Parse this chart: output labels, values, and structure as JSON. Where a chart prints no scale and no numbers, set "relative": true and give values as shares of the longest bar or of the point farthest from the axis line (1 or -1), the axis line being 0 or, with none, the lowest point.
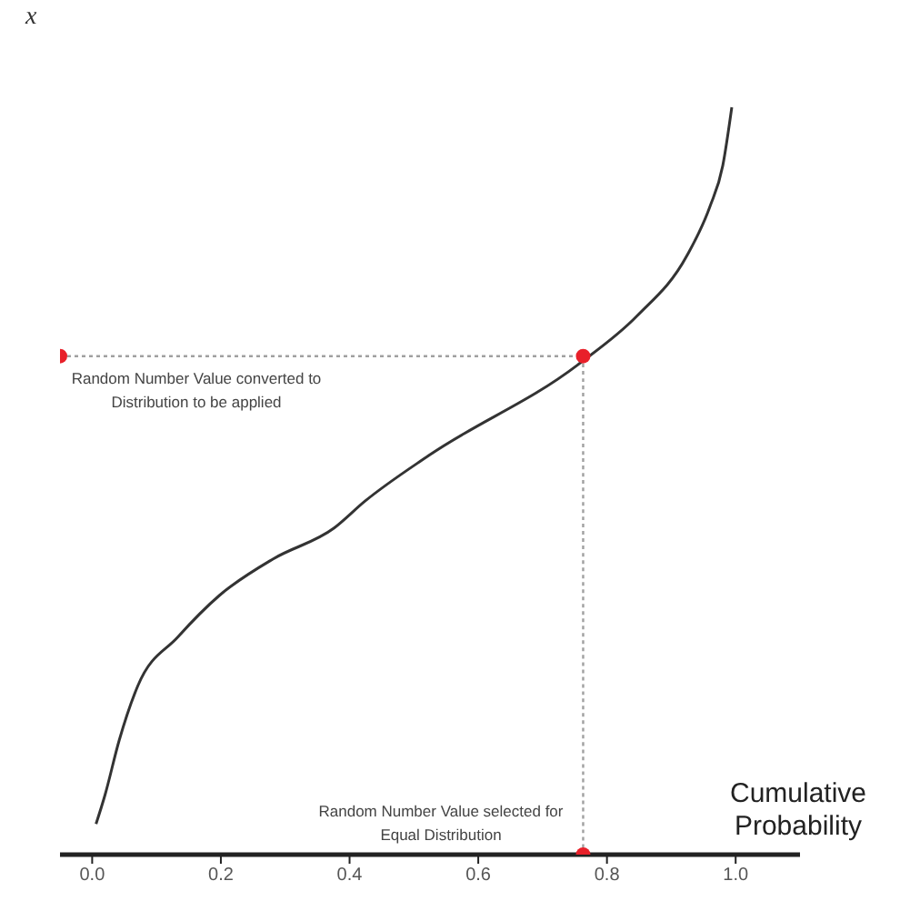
{
  "chart_data": {
    "type": "line",
    "relative": true,
    "xlabel": "Cumulative Probability",
    "ylabel": "x",
    "xlim": [
      -0.05,
      1.1
    ],
    "xticks": [
      {
        "value": 0,
        "label": "0.0"
      },
      {
        "value": 0.2,
        "label": "0.2"
      },
      {
        "value": 0.4,
        "label": "0.4"
      },
      {
        "value": 0.6,
        "label": "0.6"
      },
      {
        "value": 0.8,
        "label": "0.8"
      },
      {
        "value": 1,
        "label": "1.0"
      }
    ],
    "annotations": [
      "Random Number Value converted to Distribution to be applied",
      "Random Number Value selected for Equal Distribution"
    ],
    "series": [
      {
        "color": "#333333",
        "marker": "none",
        "line_style": "solid",
        "x": [
          0.006,
          0.02,
          0.042,
          0.071,
          0.133,
          0.198,
          0.282,
          0.376,
          0.424,
          0.523,
          0.754,
          0.847,
          0.924,
          0.96,
          0.98,
          0.994
        ],
        "values": [
          0.041,
          0.08,
          0.153,
          0.226,
          0.291,
          0.347,
          0.396,
          0.437,
          0.473,
          0.534,
          0.655,
          0.721,
          0.801,
          0.867,
          0.922,
          1
        ]
      },
      {
        "type": "line",
        "color": "#a0a0a0",
        "marker": "none",
        "line_style": "dotted",
        "x": [
          -0.05,
          0.763,
          0.763
        ],
        "values": [
          0.667,
          0.667,
          0
        ]
      },
      {
        "type": "scatter",
        "color": "#e8202a",
        "marker": "circle",
        "x": [
          -0.05,
          0.763,
          0.763
        ],
        "values": [
          0.667,
          0.667,
          0
        ]
      }
    ]
  }
}
